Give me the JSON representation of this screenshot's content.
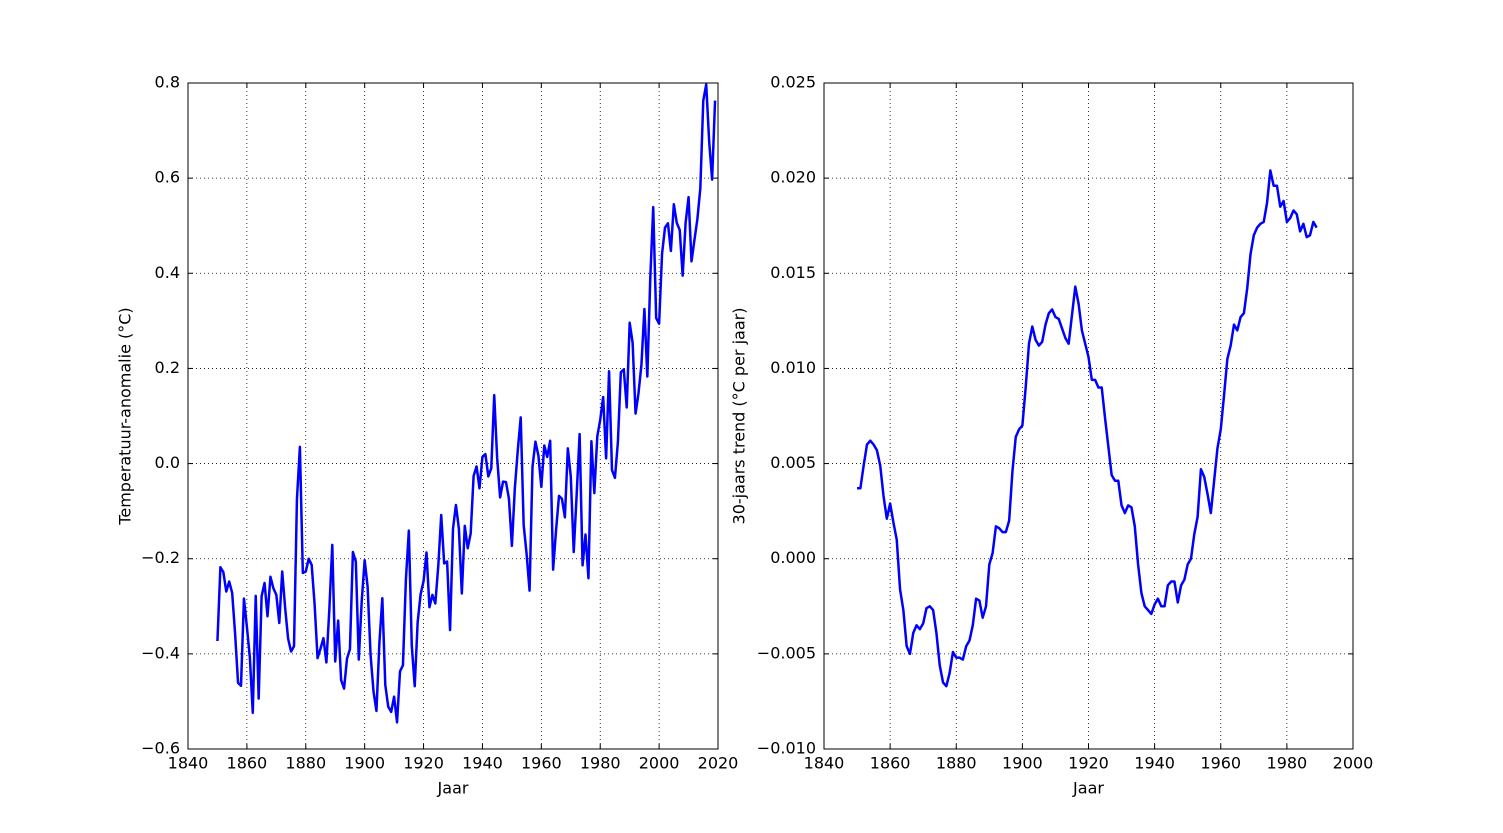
{
  "chart_data": [
    {
      "type": "line",
      "xlabel": "Jaar",
      "ylabel": "Temperatuur-anomalie (°C)",
      "x": [
        1850,
        1851,
        1852,
        1853,
        1854,
        1855,
        1856,
        1857,
        1858,
        1859,
        1860,
        1861,
        1862,
        1863,
        1864,
        1865,
        1866,
        1867,
        1868,
        1869,
        1870,
        1871,
        1872,
        1873,
        1874,
        1875,
        1876,
        1877,
        1878,
        1879,
        1880,
        1881,
        1882,
        1883,
        1884,
        1885,
        1886,
        1887,
        1888,
        1889,
        1890,
        1891,
        1892,
        1893,
        1894,
        1895,
        1896,
        1897,
        1898,
        1899,
        1900,
        1901,
        1902,
        1903,
        1904,
        1905,
        1906,
        1907,
        1908,
        1909,
        1910,
        1911,
        1912,
        1913,
        1914,
        1915,
        1916,
        1917,
        1918,
        1919,
        1920,
        1921,
        1922,
        1923,
        1924,
        1925,
        1926,
        1927,
        1928,
        1929,
        1930,
        1931,
        1932,
        1933,
        1934,
        1935,
        1936,
        1937,
        1938,
        1939,
        1940,
        1941,
        1942,
        1943,
        1944,
        1945,
        1946,
        1947,
        1948,
        1949,
        1950,
        1951,
        1952,
        1953,
        1954,
        1955,
        1956,
        1957,
        1958,
        1959,
        1960,
        1961,
        1962,
        1963,
        1964,
        1965,
        1966,
        1967,
        1968,
        1969,
        1970,
        1971,
        1972,
        1973,
        1974,
        1975,
        1976,
        1977,
        1978,
        1979,
        1980,
        1981,
        1982,
        1983,
        1984,
        1985,
        1986,
        1987,
        1988,
        1989,
        1990,
        1991,
        1992,
        1993,
        1994,
        1995,
        1996,
        1997,
        1998,
        1999,
        2000,
        2001,
        2002,
        2003,
        2004,
        2005,
        2006,
        2007,
        2008,
        2009,
        2010,
        2011,
        2012,
        2013,
        2014,
        2015,
        2016,
        2017,
        2018,
        2019
      ],
      "series": [
        {
          "color": "#0000ff",
          "values": [
            -0.373,
            -0.218,
            -0.228,
            -0.269,
            -0.248,
            -0.272,
            -0.358,
            -0.461,
            -0.467,
            -0.284,
            -0.343,
            -0.407,
            -0.524,
            -0.278,
            -0.494,
            -0.279,
            -0.251,
            -0.321,
            -0.238,
            -0.262,
            -0.276,
            -0.335,
            -0.227,
            -0.304,
            -0.368,
            -0.395,
            -0.384,
            -0.075,
            0.035,
            -0.23,
            -0.227,
            -0.2,
            -0.213,
            -0.296,
            -0.409,
            -0.389,
            -0.367,
            -0.418,
            -0.307,
            -0.171,
            -0.416,
            -0.33,
            -0.455,
            -0.473,
            -0.41,
            -0.39,
            -0.186,
            -0.206,
            -0.412,
            -0.289,
            -0.203,
            -0.259,
            -0.402,
            -0.479,
            -0.52,
            -0.377,
            -0.283,
            -0.465,
            -0.511,
            -0.522,
            -0.49,
            -0.544,
            -0.437,
            -0.424,
            -0.244,
            -0.141,
            -0.383,
            -0.468,
            -0.333,
            -0.275,
            -0.247,
            -0.187,
            -0.302,
            -0.276,
            -0.294,
            -0.215,
            -0.108,
            -0.21,
            -0.206,
            -0.35,
            -0.137,
            -0.087,
            -0.137,
            -0.273,
            -0.131,
            -0.178,
            -0.147,
            -0.026,
            -0.006,
            -0.052,
            0.014,
            0.02,
            -0.027,
            -0.01,
            0.144,
            0.011,
            -0.071,
            -0.038,
            -0.039,
            -0.074,
            -0.173,
            -0.052,
            0.028,
            0.097,
            -0.129,
            -0.19,
            -0.267,
            -0.007,
            0.046,
            0.017,
            -0.049,
            0.038,
            0.014,
            0.048,
            -0.223,
            -0.14,
            -0.068,
            -0.074,
            -0.113,
            0.032,
            -0.027,
            -0.186,
            -0.065,
            0.062,
            -0.214,
            -0.149,
            -0.241,
            0.047,
            -0.062,
            0.057,
            0.092,
            0.14,
            0.011,
            0.194,
            -0.014,
            -0.03,
            0.045,
            0.192,
            0.198,
            0.118,
            0.296,
            0.254,
            0.105,
            0.148,
            0.208,
            0.325,
            0.183,
            0.39,
            0.539,
            0.306,
            0.294,
            0.441,
            0.496,
            0.505,
            0.447,
            0.545,
            0.506,
            0.491,
            0.395,
            0.506,
            0.56,
            0.425,
            0.47,
            0.514,
            0.579,
            0.763,
            0.797,
            0.677,
            0.597,
            0.763
          ]
        }
      ],
      "xlim": [
        1840,
        2020
      ],
      "xticks": [
        1840,
        1860,
        1880,
        1900,
        1920,
        1940,
        1960,
        1980,
        2000,
        2020
      ],
      "ylim": [
        -0.6,
        0.8
      ],
      "yticks": [
        {
          "value": -0.6,
          "label": "−0.6"
        },
        {
          "value": -0.4,
          "label": "−0.4"
        },
        {
          "value": -0.2,
          "label": "−0.2"
        },
        {
          "value": 0,
          "label": "0.0"
        },
        0.2,
        0.4,
        0.6,
        0.8
      ],
      "grid": true
    },
    {
      "type": "line",
      "xlabel": "Jaar",
      "ylabel": "30-jaars trend (°C per jaar)",
      "x": [
        1850,
        1851,
        1852,
        1853,
        1854,
        1855,
        1856,
        1857,
        1858,
        1859,
        1860,
        1861,
        1862,
        1863,
        1864,
        1865,
        1866,
        1867,
        1868,
        1869,
        1870,
        1871,
        1872,
        1873,
        1874,
        1875,
        1876,
        1877,
        1878,
        1879,
        1880,
        1881,
        1882,
        1883,
        1884,
        1885,
        1886,
        1887,
        1888,
        1889,
        1890,
        1891,
        1892,
        1893,
        1894,
        1895,
        1896,
        1897,
        1898,
        1899,
        1900,
        1901,
        1902,
        1903,
        1904,
        1905,
        1906,
        1907,
        1908,
        1909,
        1910,
        1911,
        1912,
        1913,
        1914,
        1915,
        1916,
        1917,
        1918,
        1919,
        1920,
        1921,
        1922,
        1923,
        1924,
        1925,
        1926,
        1927,
        1928,
        1929,
        1930,
        1931,
        1932,
        1933,
        1934,
        1935,
        1936,
        1937,
        1938,
        1939,
        1940,
        1941,
        1942,
        1943,
        1944,
        1945,
        1946,
        1947,
        1948,
        1949,
        1950,
        1951,
        1952,
        1953,
        1954,
        1955,
        1956,
        1957,
        1958,
        1959,
        1960,
        1961,
        1962,
        1963,
        1964,
        1965,
        1966,
        1967,
        1968,
        1969,
        1970,
        1971,
        1972,
        1973,
        1974,
        1975,
        1976,
        1977,
        1978,
        1979,
        1980,
        1981,
        1982,
        1983,
        1984,
        1985,
        1986,
        1987,
        1988,
        1989
      ],
      "series": [
        {
          "color": "#0000ff",
          "values": [
            0.0037,
            0.0037,
            0.0049,
            0.006,
            0.0062,
            0.006,
            0.0057,
            0.0049,
            0.0033,
            0.0021,
            0.0029,
            0.0019,
            0.001,
            -0.0016,
            -0.0027,
            -0.0046,
            -0.005,
            -0.0039,
            -0.0035,
            -0.0037,
            -0.0034,
            -0.0026,
            -0.0025,
            -0.0027,
            -0.0039,
            -0.0056,
            -0.0065,
            -0.0067,
            -0.006,
            -0.0049,
            -0.0052,
            -0.0052,
            -0.0053,
            -0.0046,
            -0.0043,
            -0.0035,
            -0.0021,
            -0.0022,
            -0.0031,
            -0.0025,
            -0.0003,
            0.0003,
            0.0017,
            0.0016,
            0.0014,
            0.0014,
            0.002,
            0.0046,
            0.0064,
            0.0068,
            0.007,
            0.009,
            0.0113,
            0.0122,
            0.0115,
            0.0112,
            0.0114,
            0.0123,
            0.0129,
            0.0131,
            0.0127,
            0.0126,
            0.0121,
            0.0116,
            0.0113,
            0.0128,
            0.0143,
            0.0134,
            0.012,
            0.0113,
            0.0106,
            0.0094,
            0.0094,
            0.009,
            0.009,
            0.0074,
            0.0059,
            0.0044,
            0.0041,
            0.0041,
            0.0028,
            0.0024,
            0.0028,
            0.0027,
            0.0017,
            -0.0003,
            -0.0018,
            -0.0025,
            -0.0027,
            -0.0029,
            -0.0024,
            -0.0021,
            -0.0025,
            -0.0025,
            -0.0014,
            -0.0012,
            -0.0012,
            -0.0023,
            -0.0014,
            -0.0011,
            -0.0003,
            0.0,
            0.0013,
            0.0022,
            0.0047,
            0.0043,
            0.0034,
            0.0024,
            0.0041,
            0.0058,
            0.0068,
            0.0086,
            0.0105,
            0.0112,
            0.0123,
            0.012,
            0.0127,
            0.0129,
            0.0142,
            0.016,
            0.017,
            0.0174,
            0.0176,
            0.0177,
            0.0187,
            0.0204,
            0.0196,
            0.0196,
            0.0185,
            0.0188,
            0.0177,
            0.0179,
            0.0183,
            0.0181,
            0.0172,
            0.0176,
            0.0169,
            0.017,
            0.0177,
            0.0174
          ]
        }
      ],
      "xlim": [
        1840,
        2000
      ],
      "xticks": [
        1840,
        1860,
        1880,
        1900,
        1920,
        1940,
        1960,
        1980,
        2000
      ],
      "ylim": [
        -0.01,
        0.025
      ],
      "yticks": [
        {
          "value": -0.01,
          "label": "−0.010"
        },
        {
          "value": -0.005,
          "label": "−0.005"
        },
        {
          "value": 0,
          "label": "0.000"
        },
        0.005,
        {
          "value": 0.01,
          "label": "0.010"
        },
        0.015,
        {
          "value": 0.02,
          "label": "0.020"
        },
        0.025
      ],
      "grid": true
    }
  ]
}
